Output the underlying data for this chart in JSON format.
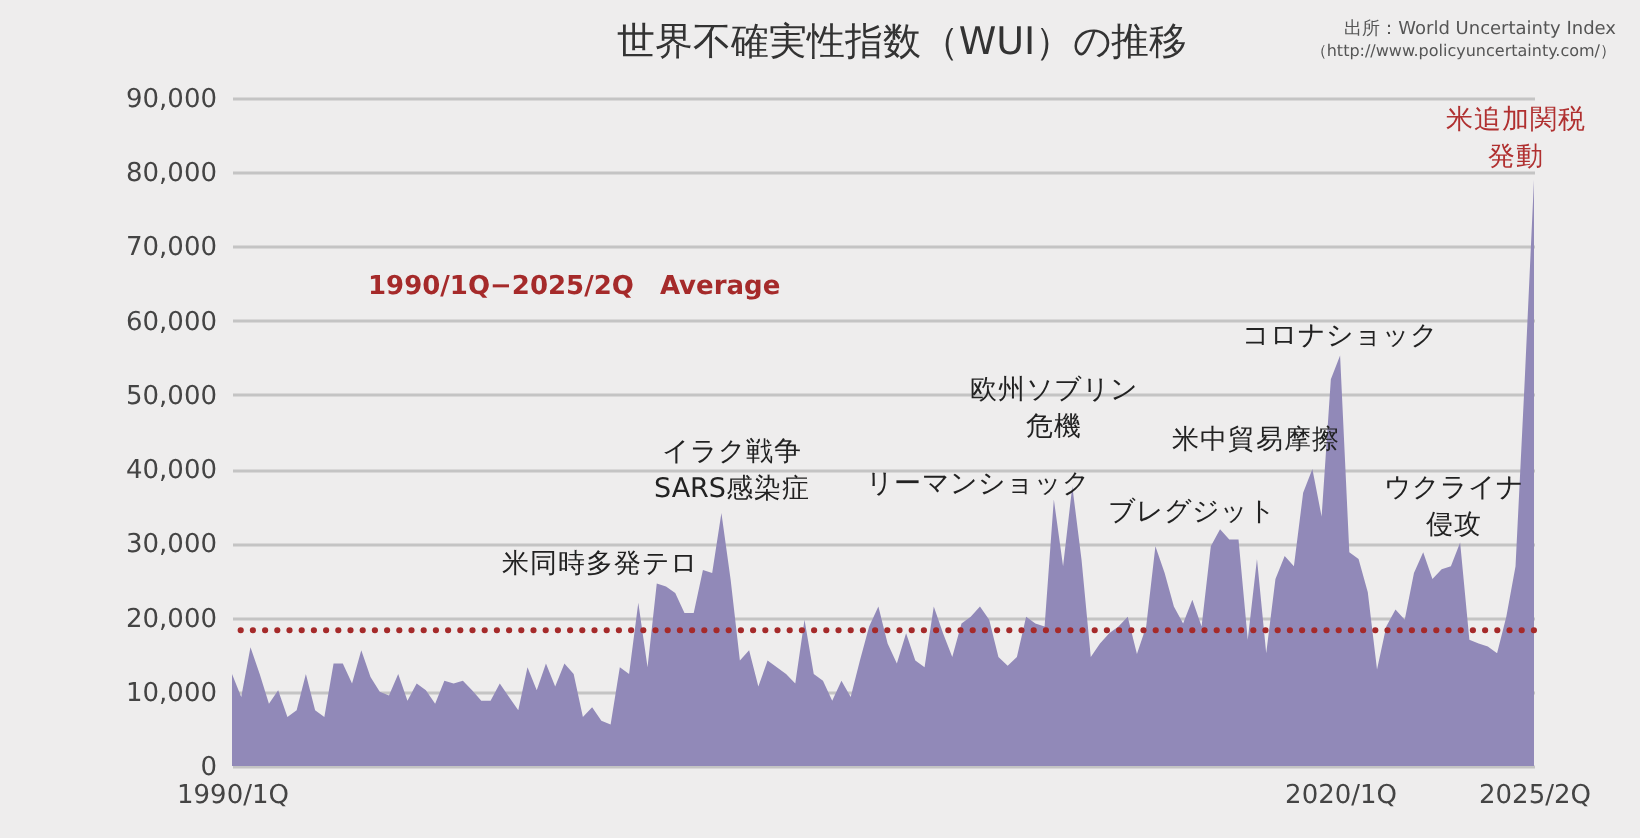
{
  "chart_data": {
    "type": "area",
    "title": "世界不確実性指数（WUI）の推移",
    "categories": [
      "1990/1Q",
      null,
      null,
      null,
      null,
      null,
      null,
      null,
      null,
      null,
      null,
      null,
      null,
      null,
      null,
      null,
      null,
      null,
      null,
      null,
      null,
      null,
      null,
      null,
      null,
      null,
      null,
      null,
      null,
      null,
      null,
      null,
      null,
      null,
      null,
      null,
      null,
      null,
      null,
      null,
      null,
      null,
      null,
      null,
      null,
      null,
      null,
      null,
      null,
      null,
      null,
      null,
      null,
      null,
      null,
      null,
      null,
      null,
      null,
      null,
      null,
      null,
      null,
      null,
      null,
      null,
      null,
      null,
      null,
      null,
      null,
      null,
      null,
      null,
      null,
      null,
      null,
      null,
      null,
      null,
      null,
      null,
      null,
      null,
      null,
      null,
      null,
      null,
      null,
      null,
      null,
      null,
      null,
      null,
      null,
      null,
      null,
      null,
      null,
      null,
      null,
      null,
      null,
      null,
      null,
      null,
      null,
      null,
      null,
      null,
      null,
      null,
      null,
      null,
      null,
      null,
      null,
      null,
      null,
      null,
      "2020/1Q",
      null,
      null,
      null,
      null,
      null,
      null,
      null,
      null,
      null,
      null,
      null,
      null,
      null,
      null,
      null,
      null,
      null,
      null,
      null,
      null,
      "2025/2Q"
    ],
    "series": [
      {
        "color": "#9189b8",
        "values": [
          12400,
          9300,
          16000,
          12400,
          8400,
          10200,
          6600,
          7500,
          12400,
          7500,
          6600,
          13800,
          13800,
          11100,
          15600,
          12000,
          10000,
          9500,
          12400,
          8800,
          11100,
          10200,
          8400,
          11500,
          11100,
          11500,
          10200,
          8800,
          8800,
          11100,
          9300,
          7500,
          13300,
          10200,
          13800,
          10700,
          13800,
          12400,
          6600,
          7900,
          6100,
          5600,
          13300,
          12400,
          22000,
          13300,
          24600,
          24200,
          23300,
          20600,
          20600,
          26400,
          26000,
          34100,
          25100,
          14200,
          15600,
          10700,
          14200,
          13300,
          12400,
          11100,
          19700,
          12400,
          11500,
          8800,
          11500,
          9300,
          14200,
          18800,
          21500,
          16500,
          13800,
          17900,
          14200,
          13300,
          21500,
          17900,
          14700,
          19200,
          20100,
          21500,
          19700,
          14700,
          13500,
          14700,
          20100,
          19200,
          18800,
          35900,
          26900,
          37700,
          27800,
          14700,
          16500,
          17900,
          18800,
          20100,
          15100,
          18800,
          29600,
          26000,
          21500,
          19200,
          22400,
          18800,
          29600,
          31900,
          30500,
          30500,
          17000,
          27900,
          15200,
          25200,
          28300,
          26900,
          36800,
          40000,
          33600,
          52100,
          55300,
          28800,
          27900,
          23400,
          13000,
          18800,
          21100,
          19700,
          26000,
          28800,
          25200,
          26500,
          26900,
          30100,
          17000,
          16500,
          16100,
          15200,
          20100,
          26900,
          52100,
          79000
        ]
      }
    ],
    "ylim": [
      0,
      90000
    ],
    "yticks": [
      0,
      {
        "value": 10000,
        "label": "10,000"
      },
      {
        "value": 20000,
        "label": "20,000"
      },
      {
        "value": 30000,
        "label": "30,000"
      },
      {
        "value": 40000,
        "label": "40,000"
      },
      {
        "value": 50000,
        "label": "50,000"
      },
      {
        "value": 60000,
        "label": "60,000"
      },
      {
        "value": 70000,
        "label": "70,000"
      },
      {
        "value": 80000,
        "label": "80,000"
      },
      {
        "value": 90000,
        "label": "90,000"
      }
    ],
    "grid": "y",
    "ref_lines": [
      {
        "axis": "y",
        "value": 18300,
        "label": "1990/1Q−2025/2Q　Average",
        "color": "#a52a2a",
        "line_style": "dotted"
      }
    ],
    "annotations": [
      "出所：World Uncertainty Index",
      "（http://www.policyuncertainty.com/）",
      "米同時多発テロ",
      "イラク戦争\nSARS感染症",
      "リーマンショック",
      "欧州ソブリン危機",
      "ブレグジット",
      "米中貿易摩擦",
      "コロナショック",
      "ウクライナ侵攻",
      "米追加関税発動"
    ]
  }
}
